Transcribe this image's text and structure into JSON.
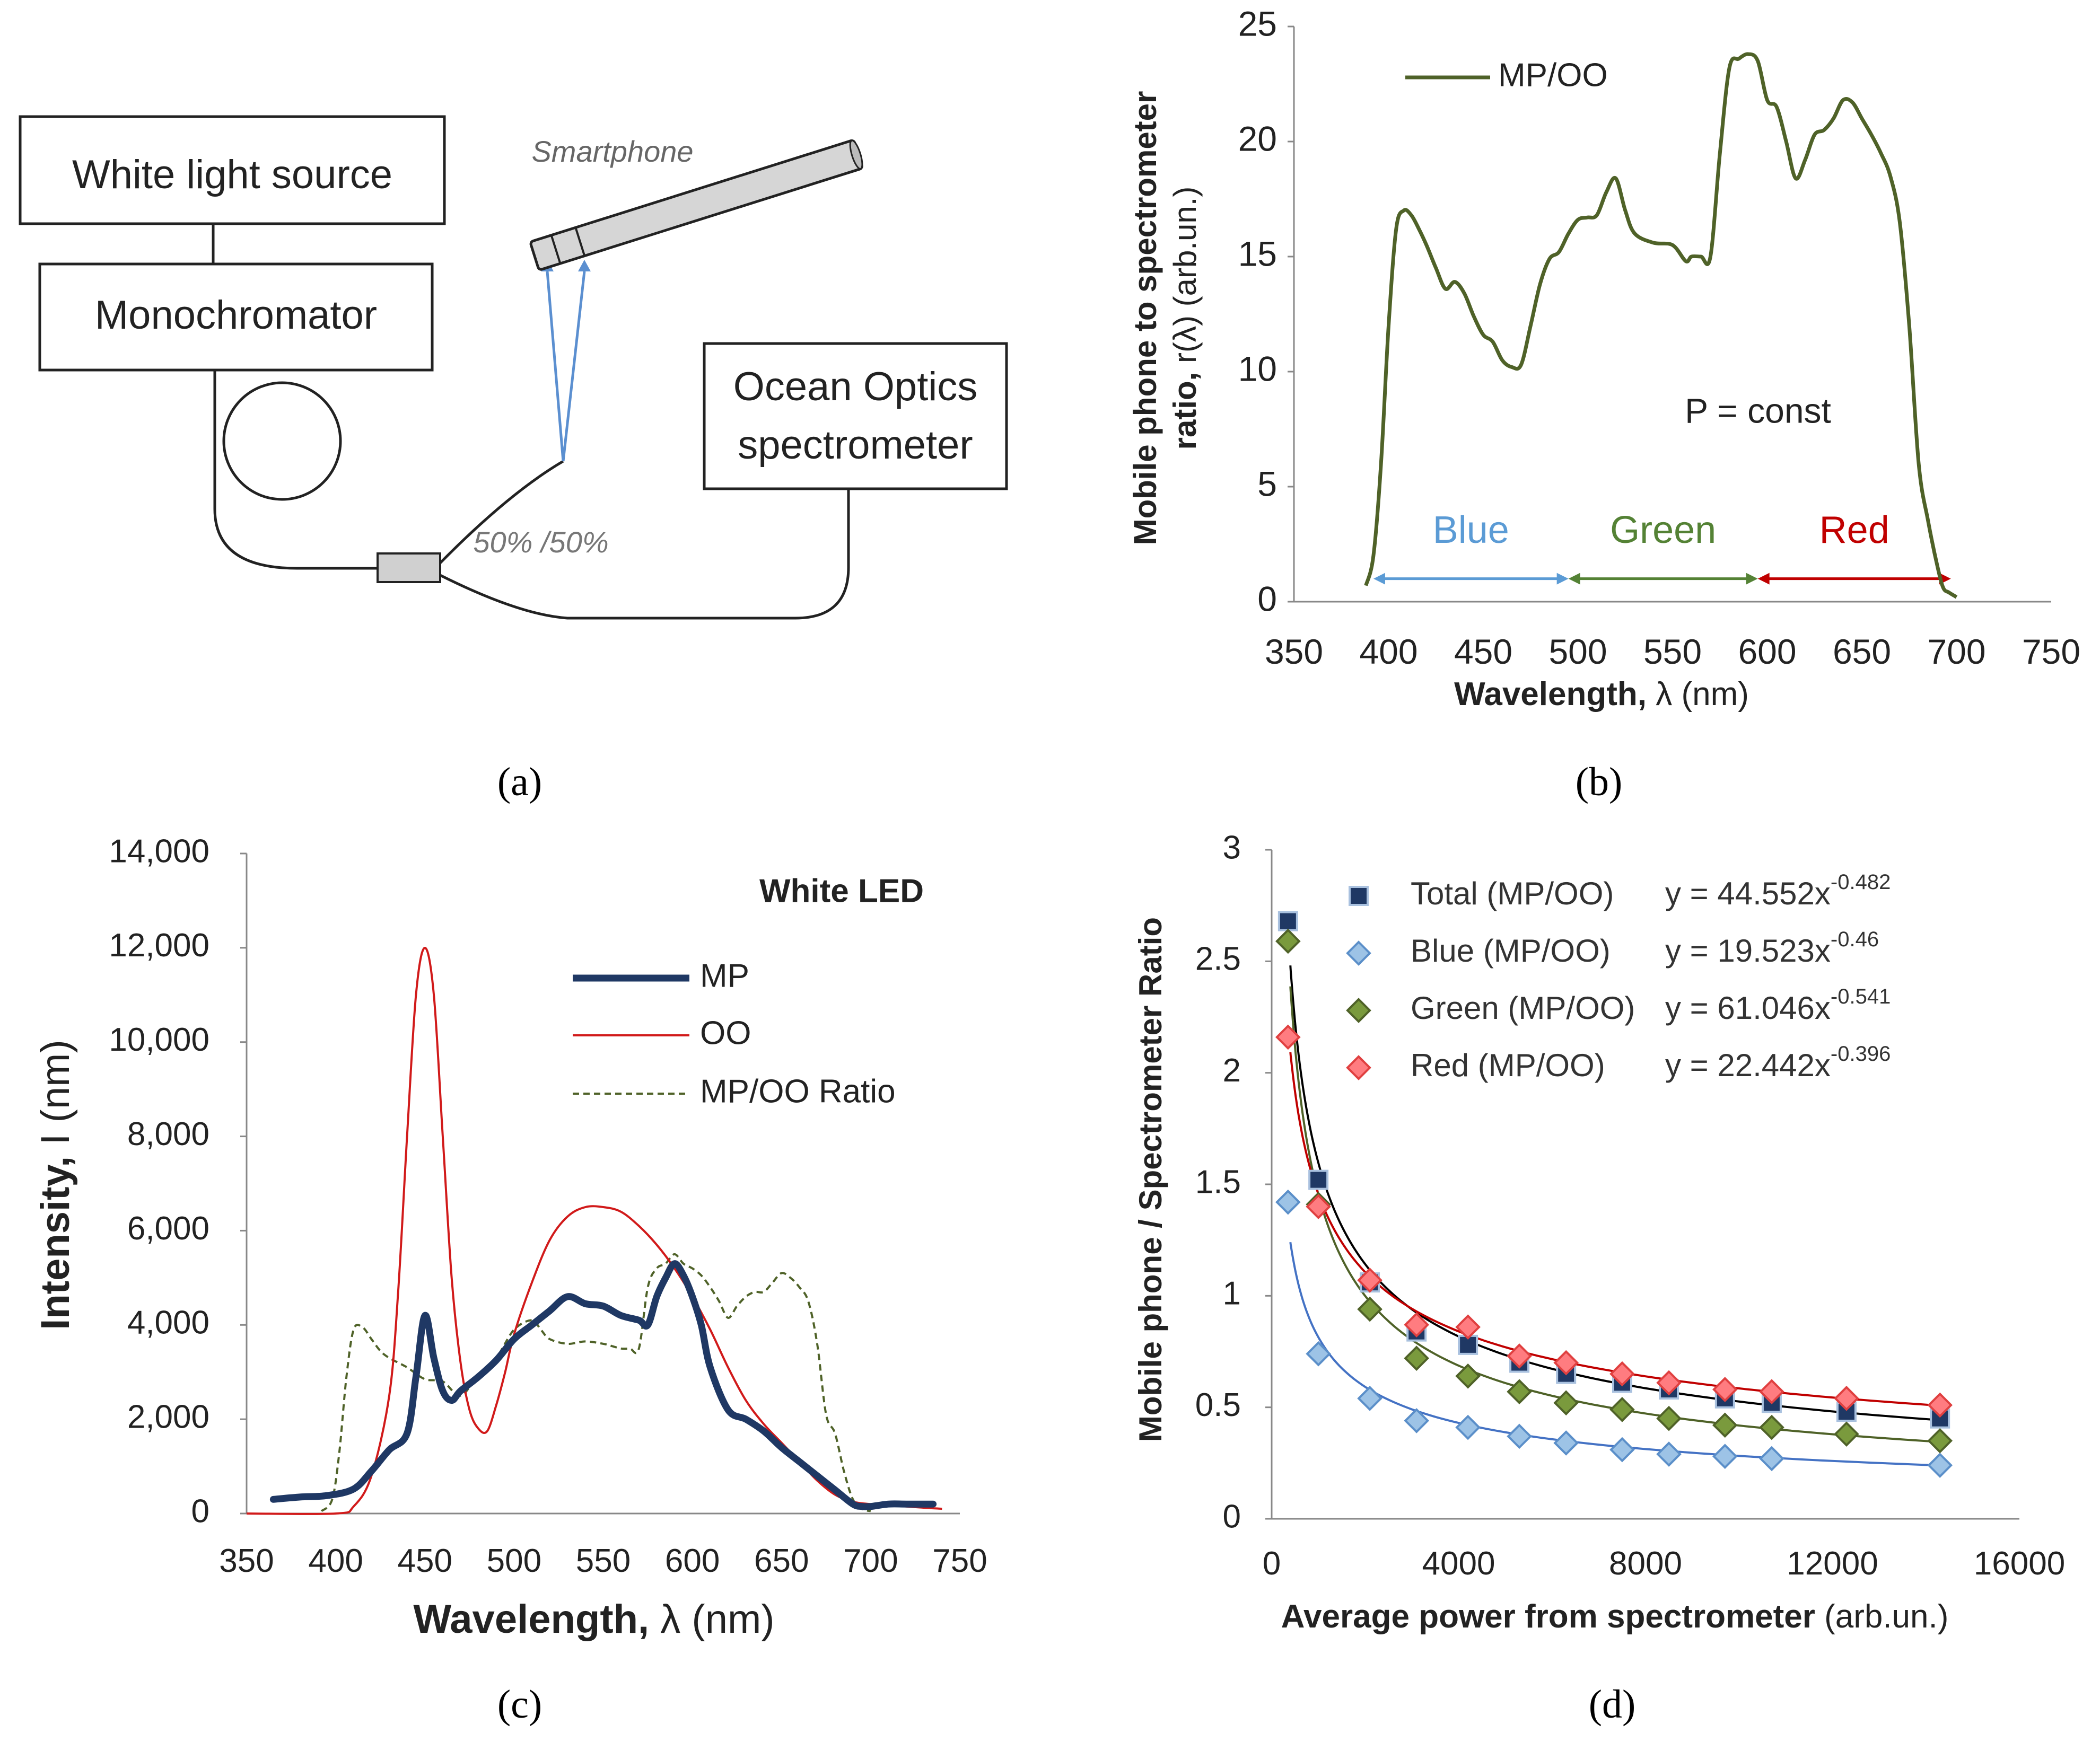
{
  "panel_labels": {
    "a": "(a)",
    "b": "(b)",
    "c": "(c)",
    "d": "(d)"
  },
  "diagram": {
    "white_light_source": "White light source",
    "monochromator": "Monochromator",
    "smartphone": "Smartphone",
    "ocean_optics_line1": "Ocean Optics",
    "ocean_optics_line2": "spectrometer",
    "splitter": "50% /50%"
  },
  "chart_data": [
    {
      "id": "b",
      "type": "line",
      "xlabel_bold": "Wavelength,",
      "xlabel_rest": "λ (nm)",
      "ylabel_line1": "Mobile phone to spectrometer",
      "ylabel_line2_bold": "ratio,",
      "ylabel_line2_rest": "r(λ) (arb.un.)",
      "xlim": [
        350,
        750
      ],
      "ylim": [
        0,
        25
      ],
      "x_ticks": [
        350,
        400,
        450,
        500,
        550,
        600,
        650,
        700,
        750
      ],
      "y_ticks": [
        0,
        5,
        10,
        15,
        20,
        25
      ],
      "legend": "MP/OO",
      "annotation": "P = const",
      "bands": [
        {
          "label": "Blue",
          "from": 392,
          "to": 495,
          "color": "#5b9bd5"
        },
        {
          "label": "Green",
          "from": 495,
          "to": 595,
          "color": "#548235"
        },
        {
          "label": "Red",
          "from": 595,
          "to": 697,
          "color": "#c00000"
        }
      ],
      "series": [
        {
          "name": "MP/OO",
          "color": "#4f6228",
          "x": [
            388,
            392,
            396,
            400,
            404,
            408,
            412,
            416,
            420,
            425,
            430,
            435,
            440,
            445,
            450,
            455,
            460,
            465,
            470,
            475,
            480,
            485,
            490,
            495,
            500,
            505,
            510,
            515,
            520,
            525,
            530,
            540,
            550,
            557,
            560,
            565,
            570,
            575,
            580,
            585,
            590,
            595,
            600,
            605,
            610,
            615,
            620,
            625,
            630,
            635,
            640,
            645,
            650,
            655,
            660,
            665,
            670,
            675,
            680,
            685,
            690,
            693,
            696,
            700
          ],
          "y": [
            0.7,
            2.0,
            6.0,
            12.0,
            16.2,
            17.0,
            16.8,
            16.2,
            15.5,
            14.5,
            13.6,
            13.9,
            13.4,
            12.4,
            11.6,
            11.3,
            10.5,
            10.2,
            10.3,
            12.0,
            13.8,
            14.9,
            15.2,
            16.0,
            16.6,
            16.7,
            16.8,
            17.8,
            18.4,
            17.0,
            16.0,
            15.6,
            15.5,
            14.8,
            15.0,
            15.0,
            15.0,
            19.5,
            23.2,
            23.6,
            23.8,
            23.5,
            21.8,
            21.5,
            20.0,
            18.4,
            19.2,
            20.3,
            20.5,
            21.0,
            21.8,
            21.7,
            21.0,
            20.3,
            19.5,
            18.5,
            16.5,
            12.0,
            6.0,
            3.5,
            1.5,
            0.6,
            0.4,
            0.2
          ]
        }
      ]
    },
    {
      "id": "c",
      "type": "line",
      "title": "White LED",
      "xlabel_bold": "Wavelength,",
      "xlabel_rest": "λ (nm)",
      "ylabel_bold": "Intensity,",
      "ylabel_rest": "I (nm)",
      "xlim": [
        350,
        750
      ],
      "ylim": [
        0,
        14000
      ],
      "x_ticks": [
        350,
        400,
        450,
        500,
        550,
        600,
        650,
        700,
        750
      ],
      "y_ticks": [
        0,
        2000,
        4000,
        6000,
        8000,
        10000,
        12000,
        14000
      ],
      "y_tick_labels": [
        "0",
        "2,000",
        "4,000",
        "6,000",
        "8,000",
        "10,000",
        "12,000",
        "14,000"
      ],
      "series": [
        {
          "name": "MP",
          "color": "#1f3864",
          "x": [
            365,
            380,
            395,
            410,
            420,
            430,
            440,
            445,
            450,
            455,
            460,
            465,
            470,
            480,
            490,
            500,
            510,
            520,
            530,
            540,
            550,
            560,
            570,
            575,
            580,
            585,
            590,
            595,
            600,
            605,
            610,
            620,
            630,
            640,
            650,
            660,
            670,
            680,
            690,
            695,
            700,
            710,
            720,
            735
          ],
          "y": [
            300,
            350,
            380,
            520,
            900,
            1350,
            1700,
            2900,
            4200,
            3300,
            2600,
            2400,
            2600,
            2900,
            3250,
            3700,
            4000,
            4300,
            4600,
            4450,
            4400,
            4200,
            4100,
            4000,
            4600,
            5000,
            5300,
            5050,
            4600,
            4000,
            3100,
            2200,
            2000,
            1750,
            1400,
            1100,
            800,
            500,
            200,
            150,
            150,
            200,
            200,
            200
          ]
        },
        {
          "name": "OO",
          "color": "#d11a1a",
          "x": [
            350,
            400,
            410,
            420,
            430,
            435,
            440,
            445,
            450,
            455,
            460,
            465,
            470,
            475,
            480,
            485,
            490,
            495,
            500,
            510,
            520,
            530,
            540,
            550,
            560,
            570,
            580,
            590,
            600,
            610,
            620,
            630,
            640,
            650,
            660,
            670,
            680,
            690,
            700,
            710,
            720,
            740
          ],
          "y": [
            0,
            0,
            150,
            800,
            2500,
            4700,
            8000,
            11000,
            12000,
            11000,
            8000,
            5000,
            3200,
            2200,
            1800,
            1750,
            2300,
            3000,
            3800,
            4900,
            5800,
            6300,
            6500,
            6500,
            6400,
            6100,
            5700,
            5200,
            4600,
            3900,
            3100,
            2400,
            1900,
            1500,
            1100,
            700,
            400,
            250,
            200,
            200,
            150,
            100
          ]
        },
        {
          "name": "MP/OO Ratio",
          "color": "#4f6228",
          "x": [
            392,
            398,
            402,
            406,
            410,
            415,
            420,
            425,
            430,
            440,
            450,
            460,
            470,
            480,
            490,
            500,
            510,
            515,
            520,
            530,
            540,
            550,
            555,
            560,
            565,
            570,
            575,
            580,
            585,
            590,
            595,
            600,
            605,
            610,
            615,
            620,
            625,
            630,
            635,
            640,
            645,
            650,
            655,
            660,
            665,
            670,
            675,
            680,
            685,
            690,
            695,
            700
          ],
          "y": [
            50,
            300,
            1300,
            2900,
            3900,
            3950,
            3700,
            3450,
            3300,
            3100,
            2850,
            2800,
            2500,
            2950,
            3300,
            3900,
            4100,
            3900,
            3700,
            3600,
            3650,
            3600,
            3550,
            3500,
            3500,
            3500,
            4800,
            5200,
            5300,
            5500,
            5300,
            5200,
            5050,
            4800,
            4500,
            4150,
            4400,
            4600,
            4700,
            4700,
            4900,
            5100,
            5000,
            4800,
            4500,
            3600,
            2100,
            1700,
            900,
            300,
            100,
            50
          ]
        }
      ]
    },
    {
      "id": "d",
      "type": "scatter",
      "xlabel_bold": "Average power from spectrometer",
      "xlabel_rest": "(arb.un.)",
      "ylabel": "Mobile phone / Spectrometer Ratio",
      "xlim": [
        0,
        16000
      ],
      "ylim": [
        0,
        3
      ],
      "x_ticks": [
        0,
        4000,
        8000,
        12000,
        16000
      ],
      "y_ticks": [
        0,
        0.5,
        1,
        1.5,
        2,
        2.5,
        3
      ],
      "y_tick_labels": [
        "0",
        "0.5",
        "1",
        "1.5",
        "2",
        "2.5",
        "3"
      ],
      "series": [
        {
          "name": "Total (MP/OO)",
          "equation_prefix": "y = 44.552x",
          "exponent": "-0.482",
          "marker": "square",
          "color": "#1f3864",
          "fill": "#1f3864",
          "edge": "#a9c1df",
          "fit_color": "#000000",
          "fit_a": 44.552,
          "fit_b": -0.482,
          "x": [
            350,
            1000,
            2100,
            3100,
            4200,
            5300,
            6300,
            7500,
            8500,
            9700,
            10700,
            12300,
            14300
          ],
          "y": [
            2.68,
            1.52,
            1.06,
            0.84,
            0.78,
            0.7,
            0.65,
            0.61,
            0.58,
            0.54,
            0.52,
            0.48,
            0.45
          ]
        },
        {
          "name": "Blue (MP/OO)",
          "equation_prefix": "y = 19.523x",
          "exponent": "-0.46",
          "marker": "diamond",
          "color": "#9dc3e6",
          "fill": "#9dc3e6",
          "edge": "#5b8fc9",
          "fit_color": "#4472c4",
          "fit_a": 19.523,
          "fit_b": -0.46,
          "x": [
            350,
            1000,
            2100,
            3100,
            4200,
            5300,
            6300,
            7500,
            8500,
            9700,
            10700,
            14300
          ],
          "y": [
            1.42,
            0.74,
            0.54,
            0.44,
            0.41,
            0.37,
            0.34,
            0.31,
            0.29,
            0.28,
            0.27,
            0.24
          ]
        },
        {
          "name": "Green (MP/OO)",
          "equation_prefix": "y = 61.046x",
          "exponent": "-0.541",
          "marker": "diamond",
          "color": "#70913a",
          "fill": "#7a9a3d",
          "edge": "#4f6228",
          "fit_color": "#4f6228",
          "fit_a": 61.046,
          "fit_b": -0.541,
          "x": [
            350,
            1000,
            2100,
            3100,
            4200,
            5300,
            6300,
            7500,
            8500,
            9700,
            10700,
            12300,
            14300
          ],
          "y": [
            2.59,
            1.41,
            0.94,
            0.72,
            0.64,
            0.57,
            0.52,
            0.49,
            0.45,
            0.42,
            0.41,
            0.38,
            0.35
          ]
        },
        {
          "name": "Red (MP/OO)",
          "equation_prefix": "y = 22.442x",
          "exponent": "-0.396",
          "marker": "diamond",
          "color": "#ff7c80",
          "fill": "#ff7c80",
          "edge": "#e04040",
          "fit_color": "#c00000",
          "fit_a": 22.442,
          "fit_b": -0.396,
          "x": [
            350,
            1000,
            2100,
            3100,
            4200,
            5300,
            6300,
            7500,
            8500,
            9700,
            10700,
            12300,
            14300
          ],
          "y": [
            2.16,
            1.4,
            1.07,
            0.87,
            0.86,
            0.73,
            0.7,
            0.65,
            0.61,
            0.58,
            0.57,
            0.54,
            0.51
          ]
        }
      ]
    }
  ]
}
